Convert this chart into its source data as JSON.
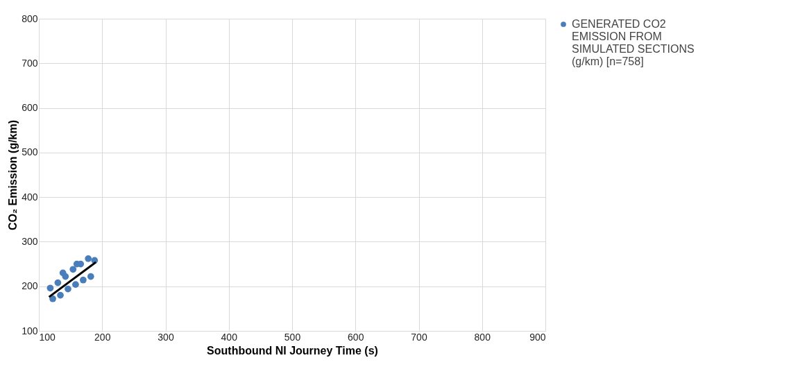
{
  "chart_data": {
    "type": "scatter",
    "xlabel": "Southbound NI Journey Time (s)",
    "ylabel": "CO₂ Emission (g/km)",
    "xlim": [
      100,
      900
    ],
    "xticks": [
      100,
      200,
      300,
      400,
      500,
      600,
      700,
      800,
      900
    ],
    "ylim": [
      100,
      800
    ],
    "yticks": [
      100,
      200,
      300,
      400,
      500,
      600,
      700,
      800
    ],
    "grid": true,
    "legend": "right",
    "marker": "circle",
    "series": [
      {
        "name": "GENERATED CO2 EMISSION FROM SIMULATED SECTIONS (g/km) [n=758]",
        "color": "#4a7ebb",
        "x": [
          118,
          122,
          130,
          134,
          142,
          146,
          154,
          158,
          166,
          170,
          178,
          182,
          188,
          160,
          138
        ],
        "values": [
          196,
          172,
          208,
          180,
          222,
          194,
          238,
          204,
          250,
          214,
          262,
          222,
          258,
          250,
          230
        ]
      },
      {
        "color": "#000000",
        "type": "line",
        "marker": "none",
        "line_style": "solid",
        "x": [
          116,
          190
        ],
        "values": [
          176,
          254
        ]
      }
    ]
  }
}
